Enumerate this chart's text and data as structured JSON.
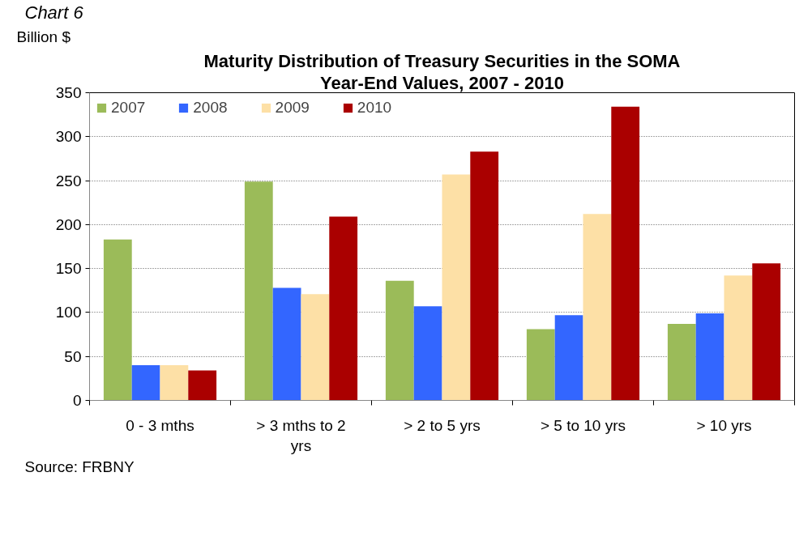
{
  "chart_data": {
    "type": "bar",
    "title": "Maturity Distribution of Treasury Securities in the SOMA",
    "subtitle": "Year-End Values, 2007 - 2010",
    "ylabel": "Billion $",
    "annotations": [
      "Chart 6",
      "Source: FRBNY"
    ],
    "categories": [
      "0 - 3 mths",
      "> 3 mths to 2 yrs",
      "> 2 to 5 yrs",
      "> 5 to 10 yrs",
      "> 10 yrs"
    ],
    "series": [
      {
        "name": "2007",
        "color": "#9bbb59",
        "values": [
          183,
          249,
          136,
          81,
          87
        ]
      },
      {
        "name": "2008",
        "color": "#3366ff",
        "values": [
          40,
          128,
          107,
          97,
          99
        ]
      },
      {
        "name": "2009",
        "color": "#fde0a6",
        "values": [
          40,
          121,
          257,
          212,
          142
        ]
      },
      {
        "name": "2010",
        "color": "#aa0000",
        "values": [
          34,
          209,
          283,
          334,
          156
        ]
      }
    ],
    "ylim": [
      0,
      350
    ],
    "yticks": [
      0,
      50,
      100,
      150,
      200,
      250,
      300,
      350
    ],
    "grid": "y",
    "legend": "top left"
  }
}
